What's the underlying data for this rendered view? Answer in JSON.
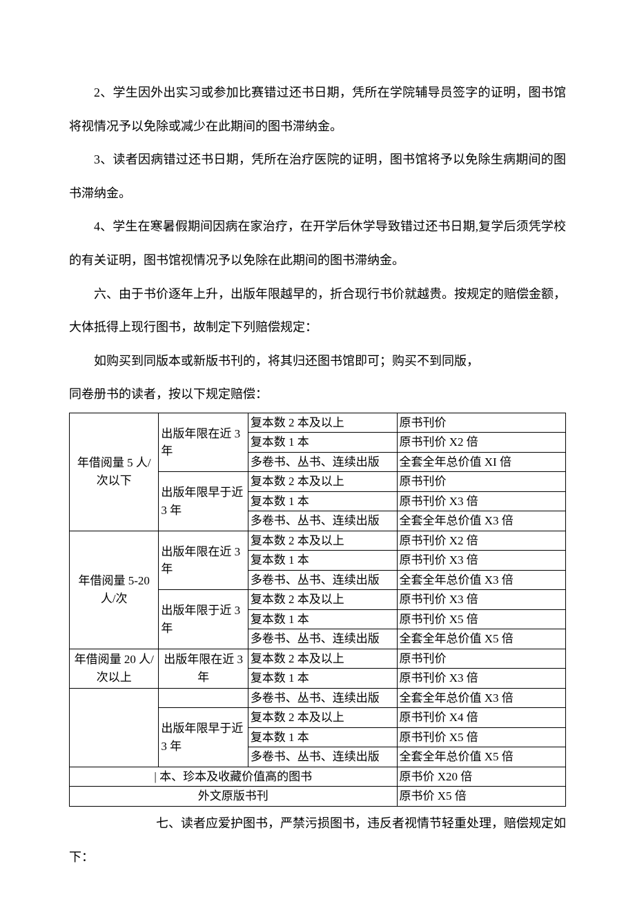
{
  "paragraphs": {
    "p1": "2、学生因外出实习或参加比赛错过还书日期，凭所在学院辅导员签字的证明，图书馆将视情况予以免除或减少在此期间的图书滞纳金。",
    "p2": "3、读者因病错过还书日期，凭所在治疗医院的证明，图书馆将予以免除生病期间的图书滞纳金。",
    "p3": "4、学生在寒暑假期间因病在家治疗，在开学后休学导致错过还书日期,复学后须凭学校的有关证明，图书馆视情况予以免除在此期间的图书滞纳金。",
    "p4": "六、由于书价逐年上升，出版年限越早的，折合现行书价就越贵。按规定的赔偿金额，大体抵得上现行图书，故制定下列赔偿规定：",
    "p5": "如购买到同版本或新版书刊的，将其归还图书馆即可；购买不到同版，",
    "p6": "同卷册书的读者，按以下规定赔偿：",
    "p7_after": "七、读者应爱护图书，严禁污损图书，违反者视情节轻重处理，赔偿规定如下："
  },
  "table": {
    "group1_label": "年借阅量 5 人/次以下",
    "group2_label": "年借阅量 5-20 人/次",
    "group3_label": "年借阅量 20 人/次以上",
    "pub_recent": "出版年限在近 3 年",
    "pub_early": "出版年限早于近 3 年",
    "pub_early2": "出版年限于近 3 年",
    "cond_a": "复本数 2 本及以上",
    "cond_b": "复本数 1 本",
    "cond_c": "多卷书、丛书、连续出版",
    "price_orig": "原书刊价",
    "price_x2": "原书刊价 X2 倍",
    "price_x3": "原书刊价 X3 倍",
    "price_x4": "原书刊价 X4 倍",
    "price_x5": "原书刊价 X5 倍",
    "fullset_x1": "全套全年总价值 XI 倍",
    "fullset_x3": "全套全年总价值 X3 倍",
    "fullset_x5": "全套全年总价值 X5 倍",
    "special_row": "| 本、珍本及收藏价值高的图书",
    "special_price": "原书价 X20 倍",
    "foreign_row": "外文原版书刊",
    "foreign_price": "原书价 X5 倍"
  }
}
